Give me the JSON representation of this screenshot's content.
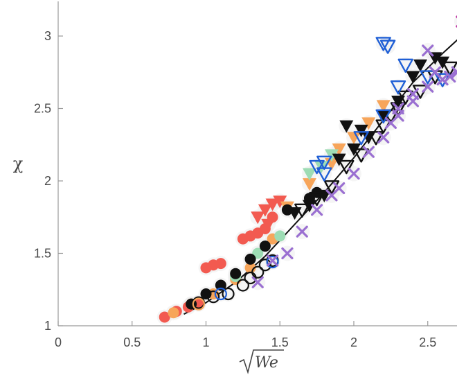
{
  "chart_data": {
    "type": "scatter",
    "xlabel": "√We",
    "xlabel_radicand": "We",
    "ylabel": "χ",
    "xlim": [
      0,
      2.75
    ],
    "ylim": [
      1,
      3.2
    ],
    "xticks": [
      "0",
      "0.5",
      "1",
      "1.5",
      "2",
      "2.5"
    ],
    "yticks": [
      "1",
      "1.5",
      "2",
      "2.5",
      "3"
    ],
    "grid": false,
    "colors": {
      "red": "#f25a50",
      "orange": "#f7a55a",
      "mint": "#9ddcb4",
      "blue": "#1f5fd6",
      "purple": "#9a6fd1",
      "magenta": "#c03aa6",
      "black": "#111111"
    },
    "fit_line": {
      "x": [
        0.85,
        1.0,
        1.2,
        1.4,
        1.6,
        1.8,
        2.0,
        2.2,
        2.4,
        2.6,
        2.75
      ],
      "y": [
        1.08,
        1.16,
        1.3,
        1.48,
        1.7,
        1.92,
        2.16,
        2.42,
        2.68,
        2.88,
        3.02
      ]
    },
    "series": [
      {
        "marker": "circle-filled",
        "color": "red",
        "points": [
          [
            0.72,
            1.06
          ],
          [
            0.8,
            1.1
          ],
          [
            0.88,
            1.13
          ],
          [
            0.95,
            1.16
          ],
          [
            1.0,
            1.4
          ],
          [
            1.05,
            1.42
          ],
          [
            1.1,
            1.43
          ],
          [
            1.25,
            1.6
          ],
          [
            1.3,
            1.62
          ],
          [
            1.35,
            1.64
          ],
          [
            1.4,
            1.67
          ],
          [
            1.45,
            1.75
          ]
        ]
      },
      {
        "marker": "triangle-down-filled",
        "color": "red",
        "points": [
          [
            1.35,
            1.75
          ],
          [
            1.4,
            1.8
          ],
          [
            1.45,
            1.84
          ],
          [
            1.5,
            1.86
          ],
          [
            1.42,
            1.7
          ]
        ]
      },
      {
        "marker": "circle-filled",
        "color": "orange",
        "points": [
          [
            0.78,
            1.09
          ],
          [
            0.9,
            1.15
          ],
          [
            1.05,
            1.22
          ],
          [
            1.2,
            1.32
          ],
          [
            1.3,
            1.4
          ],
          [
            1.45,
            1.6
          ]
        ]
      },
      {
        "marker": "triangle-down-filled",
        "color": "orange",
        "points": [
          [
            1.55,
            1.82
          ],
          [
            1.7,
            1.98
          ],
          [
            1.85,
            2.12
          ],
          [
            2.0,
            2.3
          ],
          [
            2.1,
            2.4
          ],
          [
            2.2,
            2.52
          ],
          [
            1.9,
            2.22
          ]
        ]
      },
      {
        "marker": "triangle-down-filled",
        "color": "mint",
        "points": [
          [
            1.7,
            2.05
          ],
          [
            1.78,
            2.1
          ],
          [
            1.85,
            2.18
          ]
        ]
      },
      {
        "marker": "circle-filled",
        "color": "mint",
        "points": [
          [
            1.2,
            1.34
          ],
          [
            1.35,
            1.5
          ],
          [
            1.5,
            1.62
          ]
        ]
      },
      {
        "marker": "circle-filled",
        "color": "black",
        "points": [
          [
            0.9,
            1.15
          ],
          [
            1.0,
            1.22
          ],
          [
            1.1,
            1.28
          ],
          [
            1.2,
            1.36
          ],
          [
            1.3,
            1.46
          ],
          [
            1.4,
            1.55
          ],
          [
            1.55,
            1.8
          ],
          [
            1.7,
            1.88
          ],
          [
            1.75,
            1.92
          ]
        ]
      },
      {
        "marker": "circle-open",
        "color": "black",
        "points": [
          [
            0.95,
            1.16
          ],
          [
            1.05,
            1.2
          ],
          [
            1.15,
            1.22
          ],
          [
            1.25,
            1.28
          ],
          [
            1.3,
            1.33
          ],
          [
            1.35,
            1.37
          ],
          [
            1.4,
            1.42
          ],
          [
            1.45,
            1.45
          ]
        ]
      },
      {
        "marker": "circle-open",
        "color": "orange",
        "points": [
          [
            0.95,
            1.15
          ]
        ]
      },
      {
        "marker": "circle-open",
        "color": "blue",
        "points": [
          [
            1.1,
            1.22
          ],
          [
            1.45,
            1.44
          ]
        ]
      },
      {
        "marker": "triangle-down-filled",
        "color": "black",
        "points": [
          [
            1.6,
            1.78
          ],
          [
            1.7,
            1.83
          ],
          [
            1.8,
            1.9
          ],
          [
            1.9,
            2.15
          ],
          [
            2.0,
            2.22
          ],
          [
            2.05,
            2.35
          ],
          [
            2.1,
            2.3
          ],
          [
            2.2,
            2.45
          ],
          [
            2.3,
            2.55
          ],
          [
            2.4,
            2.72
          ],
          [
            2.45,
            2.8
          ],
          [
            2.55,
            2.85
          ],
          [
            2.6,
            2.82
          ],
          [
            1.95,
            2.38
          ]
        ]
      },
      {
        "marker": "triangle-down-open",
        "color": "black",
        "points": [
          [
            1.65,
            1.8
          ],
          [
            1.75,
            1.88
          ],
          [
            1.85,
            1.96
          ],
          [
            1.95,
            2.1
          ],
          [
            2.05,
            2.18
          ],
          [
            2.15,
            2.3
          ],
          [
            2.25,
            2.45
          ],
          [
            2.35,
            2.58
          ],
          [
            2.45,
            2.62
          ],
          [
            2.55,
            2.72
          ],
          [
            2.65,
            2.78
          ],
          [
            2.2,
            2.38
          ],
          [
            2.3,
            2.5
          ]
        ]
      },
      {
        "marker": "triangle-down-open",
        "color": "blue",
        "points": [
          [
            1.8,
            2.05
          ],
          [
            1.75,
            2.1
          ],
          [
            2.05,
            2.3
          ],
          [
            2.2,
            2.45
          ],
          [
            2.2,
            2.95
          ],
          [
            2.23,
            2.93
          ],
          [
            2.35,
            2.8
          ],
          [
            2.3,
            2.65
          ],
          [
            2.5,
            2.72
          ],
          [
            2.6,
            2.7
          ],
          [
            1.8,
            2.13
          ]
        ]
      },
      {
        "marker": "x",
        "color": "purple",
        "points": [
          [
            1.35,
            1.3
          ],
          [
            1.45,
            1.45
          ],
          [
            1.55,
            1.5
          ],
          [
            1.65,
            1.65
          ],
          [
            1.75,
            1.8
          ],
          [
            1.85,
            1.9
          ],
          [
            1.9,
            1.95
          ],
          [
            2.0,
            2.05
          ],
          [
            2.1,
            2.2
          ],
          [
            2.2,
            2.3
          ],
          [
            2.25,
            2.4
          ],
          [
            2.3,
            2.5
          ],
          [
            2.4,
            2.6
          ],
          [
            2.5,
            2.65
          ],
          [
            2.55,
            2.75
          ],
          [
            2.6,
            2.7
          ],
          [
            2.5,
            2.9
          ],
          [
            2.65,
            2.72
          ],
          [
            2.7,
            2.75
          ],
          [
            2.3,
            2.45
          ],
          [
            2.4,
            2.55
          ]
        ]
      },
      {
        "marker": "x",
        "color": "magenta",
        "points": [
          [
            2.73,
            3.1
          ]
        ]
      }
    ]
  }
}
